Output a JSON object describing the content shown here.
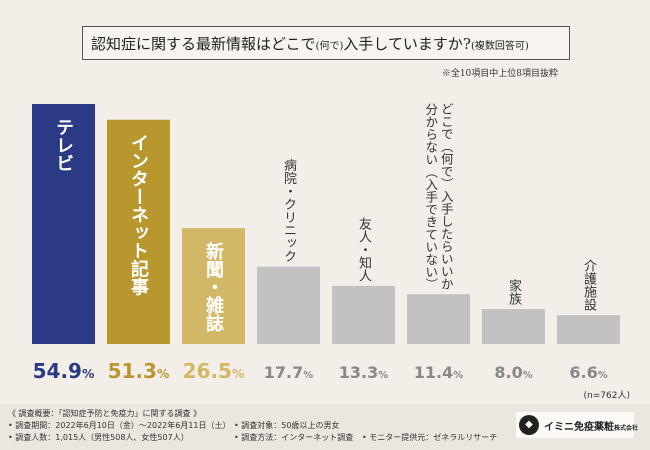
{
  "title": {
    "main": "認知症に関する最新情報はどこで",
    "mid": "(何で)",
    "tail": "入手していますか?",
    "suffix": "(複数回答可)"
  },
  "note": "※全10項目中上位8項目抜粋",
  "chart_data": {
    "type": "bar",
    "categories": [
      "テレビ",
      "インターネット記事",
      "新聞・雑誌",
      "病院・クリニック",
      "友人・知人",
      "どこで（何で）入手したらいいか分からない（入手できていない）",
      "家族",
      "介護施設"
    ],
    "label_lines": [
      [
        "テレビ"
      ],
      [
        "インターネット記事"
      ],
      [
        "新聞・雑誌"
      ],
      [
        "病院・クリニック"
      ],
      [
        "友人・知人"
      ],
      [
        "どこで（何で）入手したらいいか",
        "分からない（入手できていない）"
      ],
      [
        "家族"
      ],
      [
        "介護施設"
      ]
    ],
    "values": [
      54.9,
      51.3,
      26.5,
      17.7,
      13.3,
      11.4,
      8.0,
      6.6
    ],
    "value_labels": [
      "54.9",
      "51.3",
      "26.5",
      "17.7",
      "13.3",
      "11.4",
      "8.0",
      "6.6"
    ],
    "unit": "%",
    "colors": [
      "#2a3a85",
      "#b8982e",
      "#d2b766",
      "#c2c2c2",
      "#c2c2c2",
      "#c2c2c2",
      "#c2c2c2",
      "#c2c2c2"
    ],
    "value_colors": [
      "#2a3a85",
      "#b8982e",
      "#d2b766",
      "#888888",
      "#888888",
      "#888888",
      "#888888",
      "#888888"
    ],
    "ylim": [
      0,
      60
    ],
    "n_label": "(n=762人)"
  },
  "footer": {
    "overview": "《 調査概要：「認知症予防と免疫力」に関する調査 》",
    "period": "• 調査期間：2022年6月10日（金）〜2022年6月11日（土）",
    "target": "• 調査対象：50歳以上の男女",
    "count": "• 調査人数：1,015人（男性508人、女性507人）",
    "method": "• 調査方法：インターネット調査",
    "provider": "• モニター提供元：ゼネラルリサーチ"
  },
  "logo": {
    "mark": "◆",
    "name": "イミニ免疫薬粧",
    "sub": "株式会社"
  }
}
